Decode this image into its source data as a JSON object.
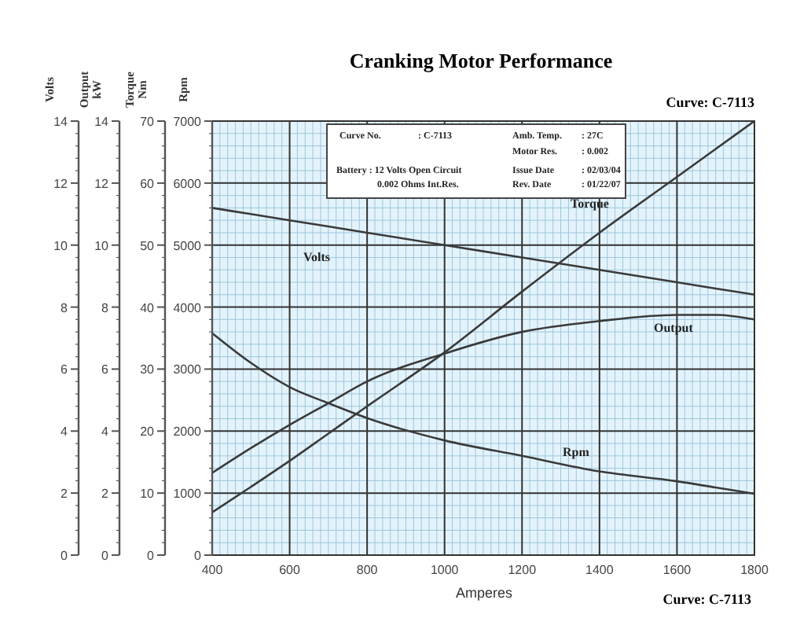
{
  "chart_data": {
    "type": "line",
    "title": "Cranking Motor Performance",
    "xlabel": "Amperes",
    "ylabel": "Rpm",
    "y2label": "Torque Nm",
    "y3label": "Volts",
    "x": [
      400,
      500,
      600,
      700,
      800,
      1000,
      1200,
      1400,
      1600,
      1700,
      1800
    ],
    "xlim": [
      400,
      1800
    ],
    "xticks": [
      400,
      600,
      800,
      1000,
      1200,
      1400,
      1600,
      1800
    ],
    "ylim": [
      0,
      7000
    ],
    "yticks": [
      0,
      1000,
      2000,
      3000,
      4000,
      5000,
      6000,
      7000
    ],
    "y2lim": [
      0,
      70
    ],
    "y2ticks": [
      0,
      10,
      20,
      30,
      40,
      50,
      60,
      70
    ],
    "y3lim": [
      0,
      14
    ],
    "y3ticks": [
      0,
      2,
      4,
      6,
      8,
      10,
      12,
      14
    ],
    "series": [
      {
        "name": "Volts",
        "color": "#3a3a3a",
        "axis": "y3",
        "values": [
          11.2,
          11.0,
          10.8,
          10.6,
          10.4,
          10.0,
          9.6,
          9.2,
          8.8,
          8.6,
          8.4
        ]
      },
      {
        "name": "Torque",
        "color": "#3a3a3a",
        "axis": "y2",
        "values": [
          6.9,
          11,
          15.2,
          19.6,
          24,
          32.7,
          42.5,
          52,
          61,
          65.5,
          70
        ]
      },
      {
        "name": "Output",
        "color": "#3a3a3a",
        "axis": "y3",
        "values": [
          2.65,
          3.45,
          4.2,
          4.9,
          5.6,
          6.5,
          7.2,
          7.55,
          7.75,
          7.75,
          7.6
        ]
      },
      {
        "name": "Rpm",
        "color": "#3a3a3a",
        "values": [
          3580,
          3100,
          2710,
          2450,
          2210,
          1850,
          1600,
          1350,
          1190,
          1090,
          990
        ]
      }
    ],
    "grid": true,
    "marker": "none",
    "line_style": "solid",
    "annotations": [
      "Curve: C-7113",
      "Curve: C-7113",
      "Curve No.",
      ": C-7113",
      "Amb. Temp.",
      ": 27C",
      "Motor Res.",
      ": 0.002",
      "Battery : 12 Volts Open Circuit",
      "0.002 Ohms Int.Res.",
      "Issue Date",
      ": 02/03/04",
      "Rev. Date",
      ": 01/22/07",
      "Output kW",
      "0",
      "2",
      "4",
      "6",
      "8",
      "10",
      "12",
      "14"
    ]
  }
}
